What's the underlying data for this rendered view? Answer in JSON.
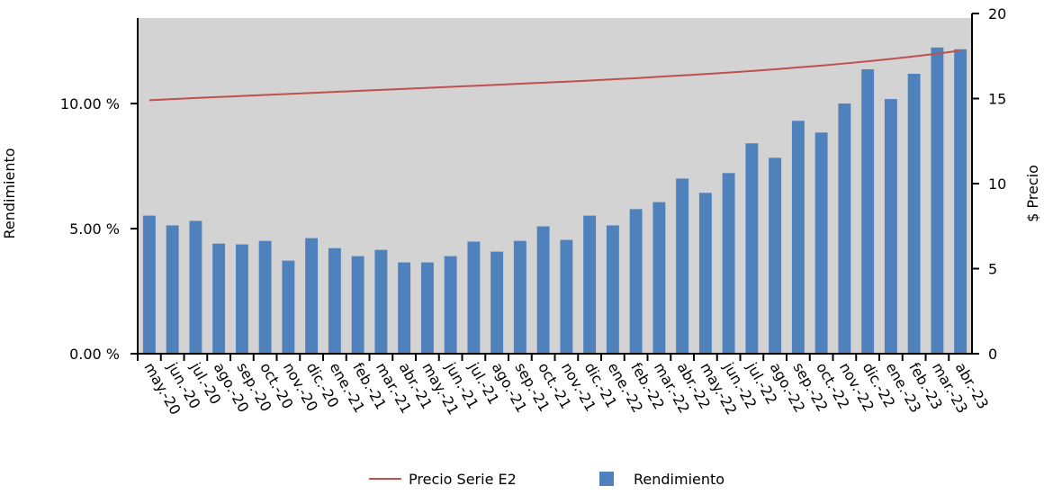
{
  "chart_data": {
    "type": "bar-line",
    "ylabel": "Rendimiento",
    "y2label": "$ Precio",
    "categories": [
      "may.-20",
      "jun.-20",
      "jul.-20",
      "ago.-20",
      "sep.-20",
      "oct.-20",
      "nov.-20",
      "dic.-20",
      "ene.-21",
      "feb.-21",
      "mar.-21",
      "abr.-21",
      "may.-21",
      "jun.-21",
      "jul.-21",
      "ago.-21",
      "sep.-21",
      "oct.-21",
      "nov.-21",
      "dic.-21",
      "ene.-22",
      "feb.-22",
      "mar.-22",
      "abr.-22",
      "may.-22",
      "jun.-22",
      "jul.-22",
      "ago.-22",
      "sep.-22",
      "oct.-22",
      "nov.-22",
      "dic.-22",
      "ene.-23",
      "feb.-23",
      "mar.-23",
      "abr.-23"
    ],
    "series": [
      {
        "name": "Precio Serie E2",
        "type": "line",
        "color": "#c0504d",
        "axis": "y2",
        "values": [
          14.9,
          14.97,
          15.03,
          15.09,
          15.15,
          15.21,
          15.27,
          15.33,
          15.39,
          15.45,
          15.51,
          15.57,
          15.63,
          15.69,
          15.75,
          15.81,
          15.87,
          15.93,
          15.99,
          16.06,
          16.13,
          16.2,
          16.28,
          16.36,
          16.44,
          16.53,
          16.62,
          16.72,
          16.83,
          16.94,
          17.06,
          17.19,
          17.33,
          17.48,
          17.64,
          17.82
        ]
      },
      {
        "name": "Rendimiento",
        "type": "bar",
        "color": "#4f81bd",
        "values": [
          5.52,
          5.13,
          5.31,
          4.4,
          4.37,
          4.51,
          3.72,
          4.62,
          4.22,
          3.9,
          4.15,
          3.65,
          3.65,
          3.9,
          4.48,
          4.08,
          4.51,
          5.09,
          4.55,
          5.52,
          5.13,
          5.78,
          6.06,
          7.0,
          6.43,
          7.22,
          8.41,
          7.83,
          9.31,
          8.84,
          10.0,
          11.37,
          10.18,
          11.19,
          12.24,
          12.17
        ]
      }
    ],
    "ylim": [
      0,
      13.6
    ],
    "yticks": [
      {
        "value": 0,
        "label": "0.00 %"
      },
      {
        "value": 5,
        "label": "5.00 %"
      },
      {
        "value": 10,
        "label": "10.00 %"
      }
    ],
    "y2lim": [
      0,
      20
    ],
    "y2ticks": [
      0,
      5,
      10,
      15,
      20
    ],
    "background": "#d3d3d3"
  }
}
